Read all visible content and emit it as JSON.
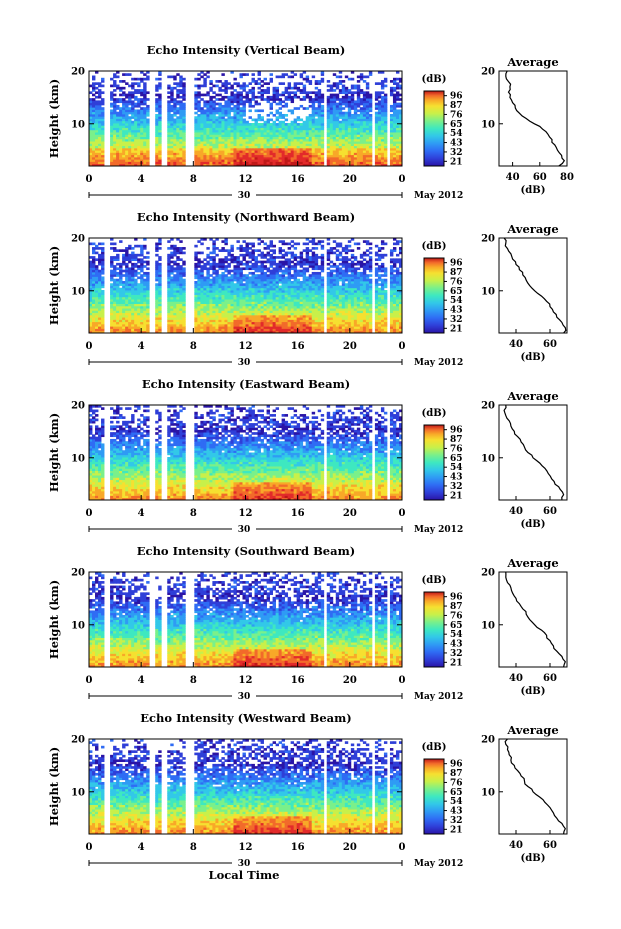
{
  "figure": {
    "panels": [
      {
        "title": "Echo Intensity (Vertical Beam)"
      },
      {
        "title": "Echo Intensity (Northward Beam)"
      },
      {
        "title": "Echo Intensity (Eastward Beam)"
      },
      {
        "title": "Echo Intensity (Southward Beam)"
      },
      {
        "title": "Echo Intensity (Westward Beam)"
      }
    ],
    "ylabel": "Height (km)",
    "xlabel": "Local Time",
    "x_ticks": [
      "0",
      "4",
      "8",
      "12",
      "16",
      "20",
      "0"
    ],
    "y_ticks": [
      "10",
      "20"
    ],
    "date_label": "30",
    "month_label": "May 2012",
    "colorbar": {
      "unit": "(dB)",
      "levels": [
        "96",
        "87",
        "76",
        "65",
        "54",
        "43",
        "32",
        "21"
      ],
      "colors": [
        "#2a14a6",
        "#2f3fd8",
        "#2f6cf4",
        "#2f9bf4",
        "#32c8e8",
        "#3ee8c0",
        "#7af08a",
        "#c8f04a",
        "#f6e030",
        "#f8a828",
        "#f26a2a",
        "#e22a2a",
        "#c01818"
      ]
    },
    "average": {
      "title": "Average",
      "xlabel": "(dB)",
      "x_ticks_vertical": [
        "40",
        "60",
        "80"
      ],
      "x_ticks_other": [
        "40",
        "60"
      ],
      "y_ticks": [
        "10",
        "20"
      ]
    }
  },
  "chart_data": [
    {
      "type": "heatmap",
      "title": "Echo Intensity (Vertical Beam)",
      "xlabel": "",
      "ylabel": "Height (km)",
      "x_range_hours": [
        0,
        24
      ],
      "ylim": [
        2,
        20
      ],
      "color_range_db": [
        21,
        96
      ],
      "data_gaps_local_time": [
        [
          1.1,
          1.5
        ],
        [
          4.7,
          5.0
        ],
        [
          5.6,
          5.9
        ],
        [
          7.4,
          8.0
        ],
        [
          17.9,
          18.3
        ],
        [
          21.6,
          22.0
        ],
        [
          22.8,
          23.1
        ]
      ],
      "average_profile": {
        "xlim": [
          30,
          80
        ],
        "height_km": [
          2,
          3,
          4,
          5,
          6,
          7,
          8,
          9,
          10,
          11,
          12,
          13,
          14,
          15,
          16,
          17,
          18,
          19,
          20
        ],
        "db": [
          74,
          78,
          76,
          73,
          71,
          69,
          66,
          62,
          56,
          50,
          45,
          42,
          40,
          38,
          37,
          38,
          37,
          35,
          36
        ]
      }
    },
    {
      "type": "heatmap",
      "title": "Echo Intensity (Northward Beam)",
      "xlabel": "",
      "ylabel": "Height (km)",
      "x_range_hours": [
        0,
        24
      ],
      "ylim": [
        2,
        20
      ],
      "color_range_db": [
        21,
        96
      ],
      "data_gaps_local_time": [
        [
          1.1,
          1.5
        ],
        [
          4.7,
          5.0
        ],
        [
          5.6,
          5.9
        ],
        [
          7.4,
          8.0
        ],
        [
          17.9,
          18.3
        ],
        [
          21.6,
          22.0
        ],
        [
          22.8,
          23.1
        ]
      ],
      "average_profile": {
        "xlim": [
          30,
          70
        ],
        "height_km": [
          2,
          3,
          4,
          5,
          6,
          7,
          8,
          9,
          10,
          11,
          12,
          13,
          14,
          15,
          16,
          17,
          18,
          19,
          20
        ],
        "db": [
          68,
          69,
          67,
          64,
          62,
          60,
          58,
          55,
          51,
          48,
          46,
          44,
          42,
          40,
          38,
          37,
          35,
          34,
          33
        ]
      }
    },
    {
      "type": "heatmap",
      "title": "Echo Intensity (Eastward Beam)",
      "xlabel": "",
      "ylabel": "Height (km)",
      "x_range_hours": [
        0,
        24
      ],
      "ylim": [
        2,
        20
      ],
      "color_range_db": [
        21,
        96
      ],
      "data_gaps_local_time": [
        [
          1.1,
          1.5
        ],
        [
          4.7,
          5.0
        ],
        [
          5.6,
          5.9
        ],
        [
          7.4,
          8.0
        ],
        [
          17.9,
          18.3
        ],
        [
          21.6,
          22.0
        ],
        [
          22.8,
          23.1
        ]
      ],
      "average_profile": {
        "xlim": [
          30,
          70
        ],
        "height_km": [
          2,
          3,
          4,
          5,
          6,
          7,
          8,
          9,
          10,
          11,
          12,
          13,
          14,
          15,
          16,
          17,
          18,
          19,
          20
        ],
        "db": [
          67,
          68,
          66,
          63,
          61,
          59,
          57,
          54,
          50,
          47,
          45,
          43,
          41,
          39,
          37,
          36,
          34,
          33,
          34
        ]
      }
    },
    {
      "type": "heatmap",
      "title": "Echo Intensity (Southward Beam)",
      "xlabel": "",
      "ylabel": "Height (km)",
      "x_range_hours": [
        0,
        24
      ],
      "ylim": [
        2,
        20
      ],
      "color_range_db": [
        21,
        96
      ],
      "data_gaps_local_time": [
        [
          1.1,
          1.5
        ],
        [
          4.7,
          5.0
        ],
        [
          5.6,
          5.9
        ],
        [
          7.4,
          8.0
        ],
        [
          17.9,
          18.3
        ],
        [
          21.6,
          22.0
        ],
        [
          22.8,
          23.1
        ]
      ],
      "average_profile": {
        "xlim": [
          30,
          70
        ],
        "height_km": [
          2,
          3,
          4,
          5,
          6,
          7,
          8,
          9,
          10,
          11,
          12,
          13,
          14,
          15,
          16,
          17,
          18,
          19,
          20
        ],
        "db": [
          68,
          69,
          67,
          64,
          62,
          60,
          58,
          55,
          51,
          48,
          46,
          44,
          42,
          40,
          38,
          37,
          35,
          34,
          34
        ]
      }
    },
    {
      "type": "heatmap",
      "title": "Echo Intensity (Westward Beam)",
      "xlabel": "Local Time",
      "ylabel": "Height (km)",
      "x_range_hours": [
        0,
        24
      ],
      "ylim": [
        2,
        20
      ],
      "color_range_db": [
        21,
        96
      ],
      "data_gaps_local_time": [
        [
          1.1,
          1.5
        ],
        [
          4.7,
          5.0
        ],
        [
          5.6,
          5.9
        ],
        [
          7.4,
          8.0
        ],
        [
          17.9,
          18.3
        ],
        [
          21.6,
          22.0
        ],
        [
          22.8,
          23.1
        ]
      ],
      "average_profile": {
        "xlim": [
          30,
          70
        ],
        "height_km": [
          2,
          3,
          4,
          5,
          6,
          7,
          8,
          9,
          10,
          11,
          12,
          13,
          14,
          15,
          16,
          17,
          18,
          19,
          20
        ],
        "db": [
          68,
          69,
          67,
          64,
          62,
          60,
          57,
          54,
          50,
          47,
          45,
          43,
          41,
          39,
          37,
          36,
          35,
          34,
          35
        ]
      }
    }
  ]
}
